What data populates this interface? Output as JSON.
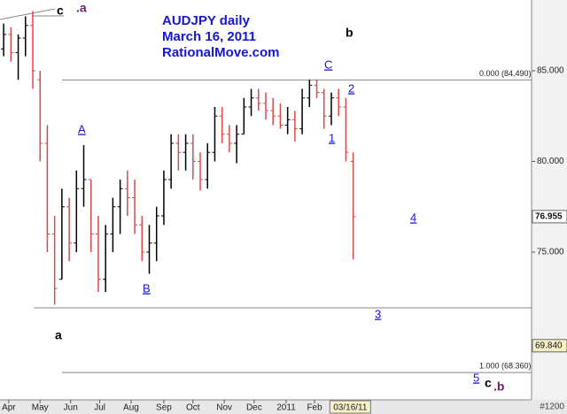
{
  "chart_data": {
    "type": "ohlc",
    "title": [
      "AUDJPY daily",
      "March 16, 2011",
      "RationalMove.com"
    ],
    "x": [
      0.5,
      1.5,
      2.5,
      3.5,
      4.5,
      5.5,
      6.5,
      7.5,
      8.5,
      9.5,
      10.5,
      11.5,
      12.5,
      13.5,
      14.5,
      15.5,
      16.5,
      17.5,
      18.5,
      19.5,
      20.5,
      21.5,
      22.5,
      23.5,
      24.5,
      25.5,
      26.5,
      27.5,
      28.5,
      29.5,
      30.5,
      31.5,
      32.5,
      33.5,
      34.5,
      35.5,
      36.5,
      37.5,
      38.5,
      39.5,
      40.5,
      41.5,
      42.5,
      43.5,
      44.5,
      45.5,
      46.5,
      47.5,
      48.5
    ],
    "open": [
      86.2,
      87.0,
      86.0,
      86.8,
      87.5,
      84.5,
      81.0,
      76.0,
      73.5,
      77.5,
      75.5,
      78.5,
      79.0,
      76.0,
      73.5,
      76.0,
      77.5,
      78.5,
      78.0,
      76.5,
      75.0,
      75.5,
      77.0,
      79.0,
      81.0,
      80.5,
      81.0,
      80.0,
      79.0,
      80.5,
      82.5,
      81.5,
      81.0,
      81.5,
      83.0,
      83.5,
      83.2,
      82.8,
      82.5,
      82.0,
      82.3,
      81.8,
      83.5,
      84.2,
      83.8,
      82.5,
      83.5,
      83.0,
      80.0
    ],
    "high": [
      87.6,
      87.4,
      87.0,
      88.0,
      88.3,
      85.0,
      82.0,
      77.0,
      78.5,
      78.0,
      79.5,
      80.9,
      79.0,
      77.0,
      76.5,
      78.0,
      79.0,
      79.5,
      79.0,
      77.0,
      76.5,
      77.5,
      79.5,
      81.5,
      81.5,
      81.5,
      81.5,
      80.5,
      81.0,
      83.0,
      83.0,
      82.0,
      82.0,
      83.5,
      84.0,
      84.0,
      83.8,
      83.5,
      83.2,
      83.0,
      82.8,
      84.0,
      84.5,
      84.49,
      84.0,
      83.8,
      84.0,
      83.5,
      80.5
    ],
    "low": [
      85.8,
      85.5,
      84.5,
      85.8,
      84.0,
      80.0,
      75.0,
      72.1,
      73.5,
      74.5,
      75.0,
      77.5,
      75.0,
      72.8,
      72.8,
      75.0,
      76.0,
      77.0,
      76.0,
      74.5,
      73.8,
      74.5,
      76.5,
      78.5,
      79.5,
      79.5,
      79.0,
      78.4,
      78.5,
      80.0,
      81.0,
      80.5,
      79.9,
      81.5,
      82.5,
      82.8,
      82.3,
      82.0,
      81.8,
      81.5,
      81.1,
      81.5,
      83.0,
      83.5,
      81.8,
      82.0,
      82.5,
      80.0,
      74.6
    ],
    "close": [
      87.0,
      86.0,
      86.8,
      87.5,
      85.0,
      81.0,
      76.0,
      73.0,
      77.5,
      75.5,
      78.5,
      79.0,
      76.0,
      73.5,
      76.0,
      77.5,
      78.5,
      78.0,
      76.5,
      75.0,
      75.5,
      77.0,
      79.0,
      81.0,
      80.5,
      81.0,
      80.0,
      79.0,
      80.5,
      82.5,
      81.5,
      81.0,
      81.5,
      83.0,
      83.5,
      83.2,
      82.8,
      82.5,
      82.0,
      82.3,
      81.8,
      83.5,
      84.2,
      83.8,
      82.5,
      83.5,
      83.0,
      80.5,
      76.955
    ],
    "up_color": "#000000",
    "down_color": "#e04848",
    "xlim": [
      0,
      73
    ],
    "ylim": [
      67.05,
      88.9
    ],
    "xticks": [
      {
        "value": 1.2,
        "label": "Apr"
      },
      {
        "value": 5.5,
        "label": "May"
      },
      {
        "value": 9.7,
        "label": "Jun"
      },
      {
        "value": 13.7,
        "label": "Jul"
      },
      {
        "value": 18,
        "label": "Aug"
      },
      {
        "value": 22.5,
        "label": "Sep"
      },
      {
        "value": 26.5,
        "label": "Oct"
      },
      {
        "value": 30.8,
        "label": "Nov"
      },
      {
        "value": 34.9,
        "label": "Dec"
      },
      {
        "value": 39.3,
        "label": "2011"
      },
      {
        "value": 43.2,
        "label": "Feb"
      },
      {
        "value": 48.1,
        "label": "03/16/11"
      }
    ],
    "yticks": [
      {
        "value": 85,
        "label": "85.000"
      },
      {
        "value": 80,
        "label": "80.000"
      },
      {
        "value": 75,
        "label": "75.000"
      }
    ],
    "price_markers": [
      76.955,
      {
        "value": 69.84,
        "label": "69.840"
      }
    ],
    "levels": [
      {
        "value": 84.49,
        "label": "0.000 (84.490)"
      },
      {
        "value": 68.36,
        "label": "1.000 (68.360)"
      }
    ],
    "wave_labels": [
      "c",
      ".a",
      "b",
      "C",
      "2",
      "A",
      "1",
      "B",
      "4",
      "3",
      "a",
      "5",
      "c",
      ".b"
    ],
    "footer": "#1200"
  }
}
